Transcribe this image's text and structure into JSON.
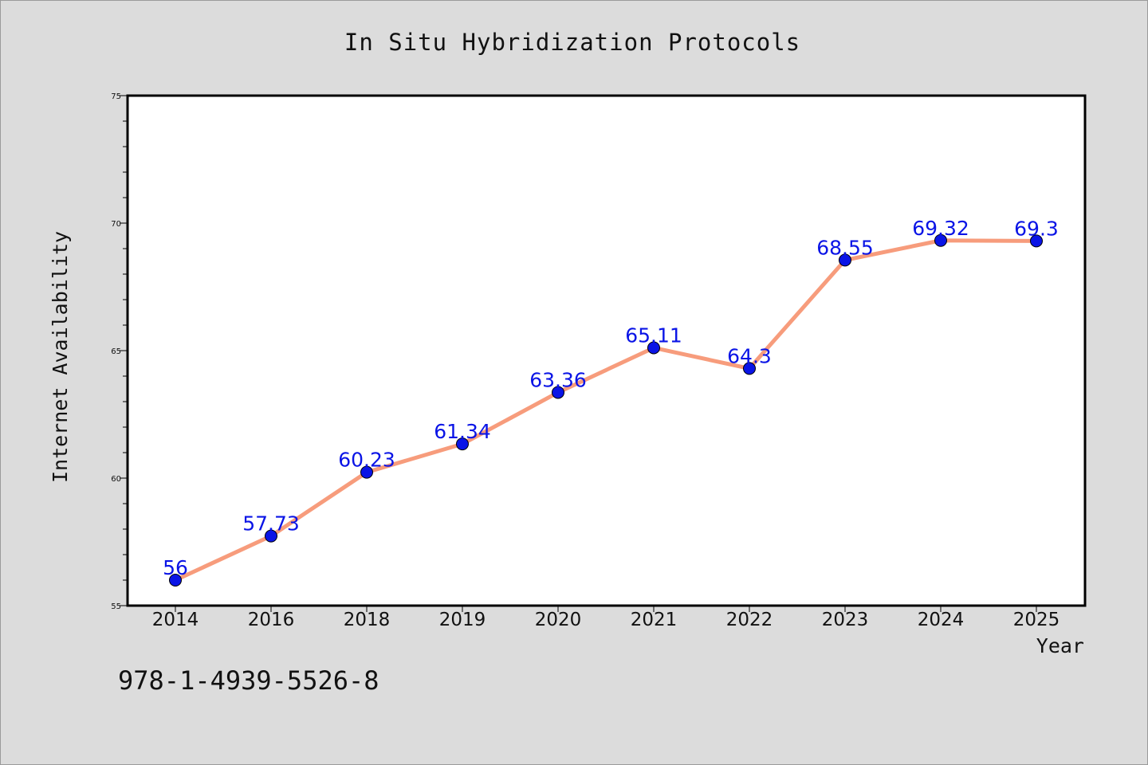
{
  "chart_data": {
    "type": "line",
    "title": "In Situ Hybridization Protocols",
    "xlabel": "Year",
    "ylabel": "Internet Availability",
    "categories": [
      "2014",
      "2016",
      "2018",
      "2019",
      "2020",
      "2021",
      "2022",
      "2023",
      "2024",
      "2025"
    ],
    "series": [
      {
        "values": [
          56,
          57.73,
          60.23,
          61.34,
          63.36,
          65.11,
          64.3,
          68.55,
          69.32,
          69.3
        ]
      }
    ],
    "data_labels": [
      "56",
      "57.73",
      "60.23",
      "61.34",
      "63.36",
      "65.11",
      "64.3",
      "68.55",
      "69.32",
      "69.3"
    ],
    "ylim": [
      55,
      75
    ],
    "yticks": [
      "55",
      "60",
      "65",
      "70",
      "75"
    ],
    "grid": false,
    "line_color": "#f79c7c",
    "marker_color": "#0a14e6",
    "label_color": "#0a14e6"
  },
  "footer_text": "978-1-4939-5526-8"
}
